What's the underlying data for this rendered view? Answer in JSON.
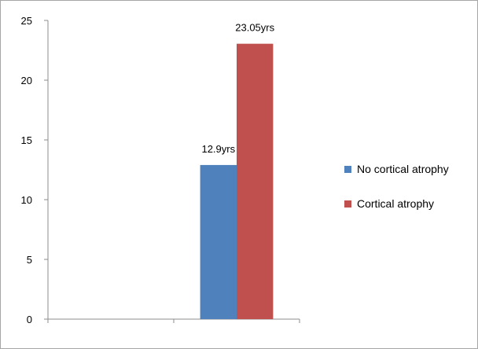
{
  "chart_data": {
    "type": "bar",
    "categories": [
      "",
      ""
    ],
    "series": [
      {
        "name": "No cortical atrophy",
        "values": [
          null,
          12.9
        ],
        "labels": [
          "",
          "12.9yrs"
        ],
        "color": "#4f81bd"
      },
      {
        "name": "Cortical atrophy",
        "values": [
          null,
          23.05
        ],
        "labels": [
          "",
          "23.05yrs"
        ],
        "color": "#c0504d"
      }
    ],
    "title": "",
    "xlabel": "",
    "ylabel": "",
    "ylim": [
      0,
      25
    ],
    "yticks": [
      0,
      5,
      10,
      15,
      20,
      25
    ],
    "grid": false,
    "legend": "right"
  }
}
